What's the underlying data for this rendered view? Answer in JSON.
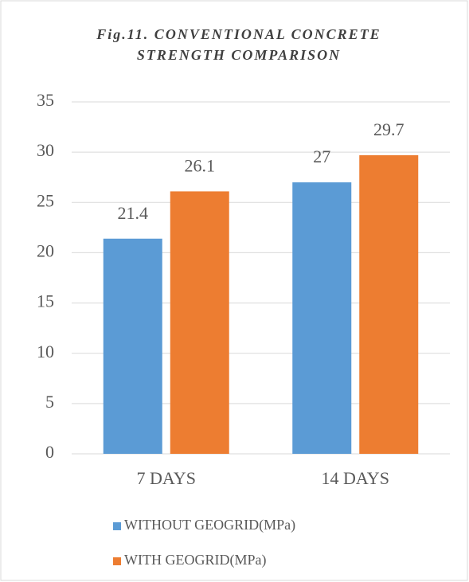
{
  "chart_data": {
    "type": "bar",
    "title": "Fig.11. CONVENTIONAL CONCRETE STRENGTH COMPARISON",
    "categories": [
      "7 DAYS",
      "14 DAYS"
    ],
    "series": [
      {
        "name": "WITHOUT GEOGRID(MPa)",
        "color": "#5b9bd5",
        "values": [
          21.4,
          27
        ]
      },
      {
        "name": "WITH GEOGRID(MPa)",
        "color": "#ed7d31",
        "values": [
          26.1,
          29.7
        ]
      }
    ],
    "ylim": [
      0,
      35
    ],
    "yticks": [
      0,
      5,
      10,
      15,
      20,
      25,
      30,
      35
    ],
    "grid": true,
    "legend": "bottom"
  }
}
